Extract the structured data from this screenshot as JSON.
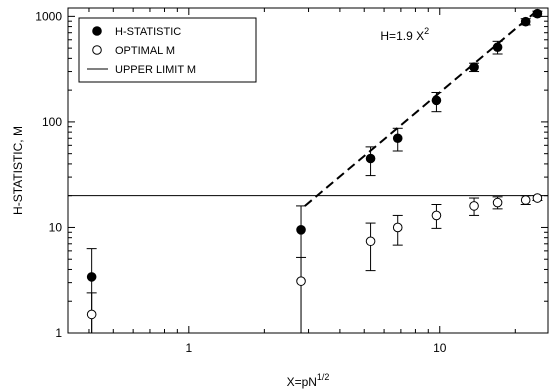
{
  "chart_data": {
    "type": "scatter",
    "xlabel_main": "X=pN",
    "xlabel_sup": "1/2",
    "ylabel": "H-STATISTIC, M",
    "xscale": "log",
    "yscale": "log",
    "xlim": [
      0.33,
      27
    ],
    "ylim": [
      1,
      1200
    ],
    "x_ticks": [
      {
        "value": 1,
        "label": "1"
      },
      {
        "value": 10,
        "label": "10"
      }
    ],
    "y_ticks": [
      {
        "value": 1,
        "label": "1"
      },
      {
        "value": 10,
        "label": "10"
      },
      {
        "value": 100,
        "label": "100"
      },
      {
        "value": 1000,
        "label": "1000"
      }
    ],
    "legend": {
      "placement": "top-left",
      "entries": [
        {
          "label": "H-STATISTIC",
          "marker": "filled-circle"
        },
        {
          "label": "OPTIMAL M",
          "marker": "open-circle"
        },
        {
          "label": "UPPER LIMIT M",
          "marker": "solid-line"
        }
      ]
    },
    "series": [
      {
        "name": "H-STATISTIC",
        "marker": "filled",
        "points": [
          {
            "x": 0.41,
            "y": 3.4,
            "lo": 1.0,
            "hi": 6.3
          },
          {
            "x": 2.8,
            "y": 9.5,
            "lo": 1.0,
            "hi": 16
          },
          {
            "x": 5.3,
            "y": 45,
            "lo": 31,
            "hi": 58
          },
          {
            "x": 6.8,
            "y": 70,
            "lo": 53,
            "hi": 87
          },
          {
            "x": 9.7,
            "y": 160,
            "lo": 125,
            "hi": 190
          },
          {
            "x": 13.7,
            "y": 330,
            "lo": 300,
            "hi": 360
          },
          {
            "x": 17.0,
            "y": 510,
            "lo": 440,
            "hi": 580
          },
          {
            "x": 22.0,
            "y": 890,
            "lo": 830,
            "hi": 950
          },
          {
            "x": 24.5,
            "y": 1060,
            "lo": 1000,
            "hi": 1120
          }
        ]
      },
      {
        "name": "OPTIMAL M",
        "marker": "open",
        "points": [
          {
            "x": 0.41,
            "y": 1.5,
            "lo": 1.0,
            "hi": 2.4
          },
          {
            "x": 2.8,
            "y": 3.1,
            "lo": 1.0,
            "hi": 5.2
          },
          {
            "x": 5.3,
            "y": 7.4,
            "lo": 3.9,
            "hi": 11
          },
          {
            "x": 6.8,
            "y": 10,
            "lo": 6.8,
            "hi": 13
          },
          {
            "x": 9.7,
            "y": 13,
            "lo": 9.8,
            "hi": 16.5
          },
          {
            "x": 13.7,
            "y": 16,
            "lo": 13,
            "hi": 19
          },
          {
            "x": 17.0,
            "y": 17.2,
            "lo": 15,
            "hi": 19.5
          },
          {
            "x": 22.0,
            "y": 18.2,
            "lo": 16.5,
            "hi": 20
          },
          {
            "x": 24.5,
            "y": 19,
            "lo": 18,
            "hi": 20
          }
        ]
      }
    ],
    "upper_limit": {
      "name": "UPPER LIMIT M",
      "y": 20
    },
    "fit_line": {
      "coefficient": 1.9,
      "exponent": 2,
      "x_range": [
        2.9,
        24.5
      ],
      "label_main": "H=1.9 X",
      "label_sup": "2",
      "label_at": {
        "x": 5.8,
        "y": 600
      }
    }
  }
}
